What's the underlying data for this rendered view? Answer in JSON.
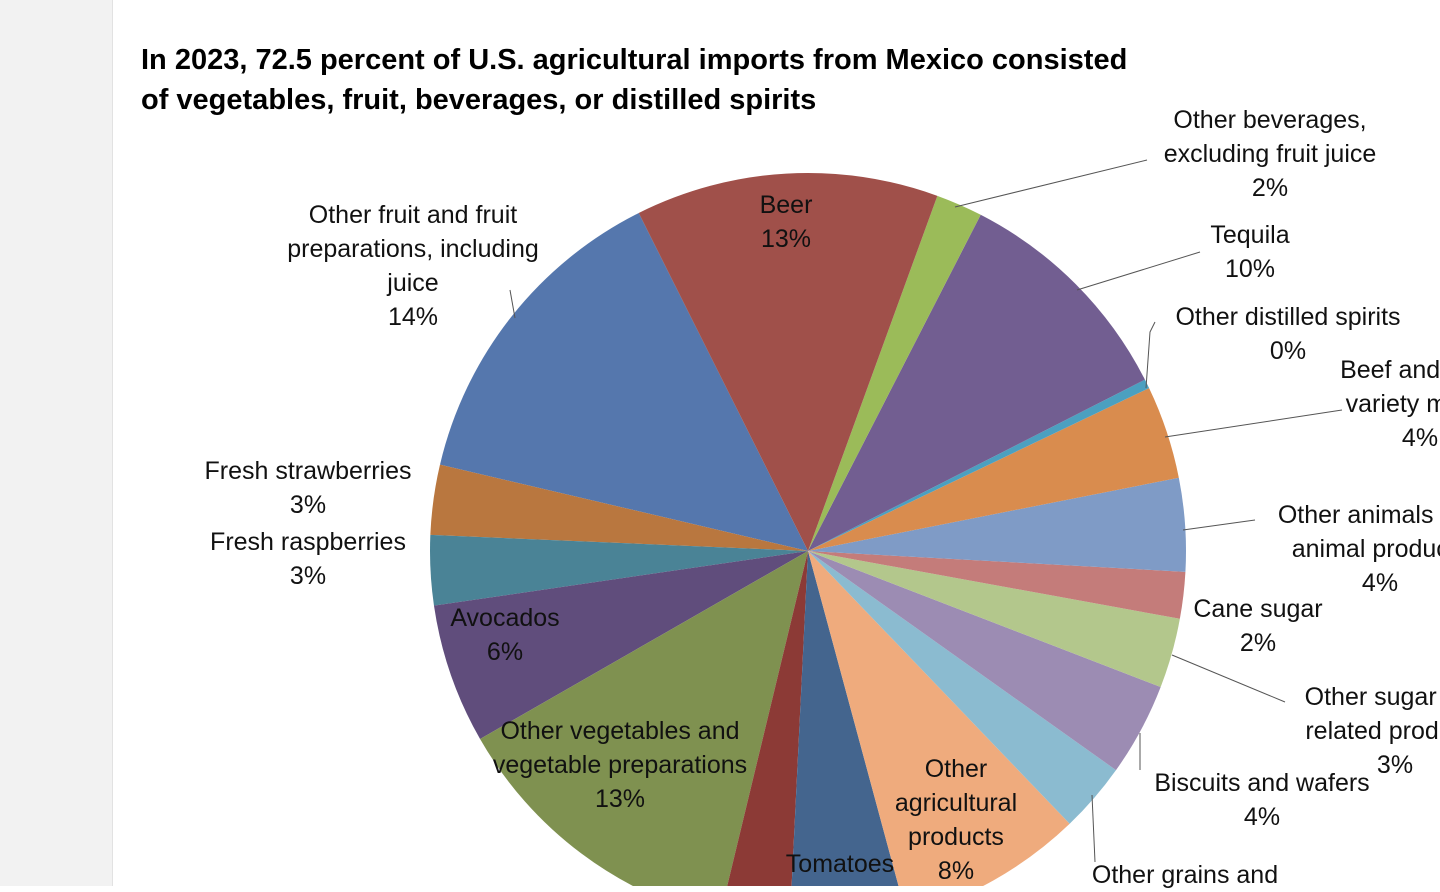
{
  "chart_data": {
    "type": "pie",
    "title": "In 2023, 72.5 percent of U.S. agricultural imports from Mexico consisted of vegetables, fruit, beverages, or distilled spirits",
    "categories": [
      "Beer",
      "Other beverages, excluding fruit juice",
      "Tequila",
      "Other distilled spirits",
      "Beef and veal, variety meats",
      "Other animals and animal products",
      "Cane sugar",
      "Other sugar and related products",
      "Biscuits and wafers",
      "Other grains and",
      "Other agricultural products",
      "Tomatoes",
      null,
      "Other vegetables and vegetable preparations",
      "Avocados",
      "Fresh raspberries",
      "Fresh strawberries",
      "Other fruit and fruit preparations, including juice"
    ],
    "values": [
      13,
      2,
      10,
      0.4,
      4,
      4,
      2,
      3,
      4,
      3,
      8,
      5,
      3,
      13,
      6,
      3,
      3,
      14
    ],
    "value_labels": [
      "13%",
      "2%",
      "10%",
      "0%",
      "4%",
      "4%",
      "2%",
      "3%",
      "4%",
      null,
      "8%",
      null,
      null,
      "13%",
      "6%",
      "3%",
      "3%",
      "14%"
    ],
    "colors": [
      "#a0504a",
      "#9bbb59",
      "#725e91",
      "#4ba0c0",
      "#d98c4e",
      "#7f9bc6",
      "#c47c7a",
      "#b3c78c",
      "#9c8cb3",
      "#8bbbd0",
      "#efab7d",
      "#44658e",
      "#8c3a36",
      "#7f9150",
      "#604d7c",
      "#4a8396",
      "#b9773f",
      "#5577ad"
    ]
  }
}
